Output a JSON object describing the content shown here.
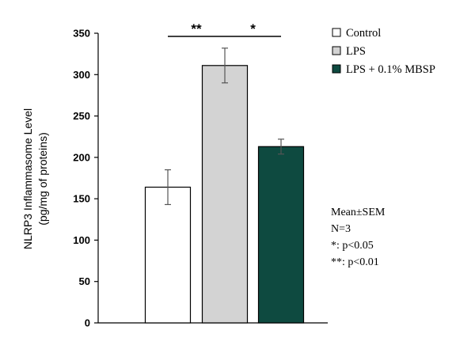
{
  "chart_data": {
    "type": "bar",
    "title": "",
    "xlabel": "",
    "ylabel": [
      "NLRP3 Inflammasome Level",
      "(pg/mg of proteins)"
    ],
    "ylim": [
      0,
      350
    ],
    "yticks": [
      0,
      50,
      100,
      150,
      200,
      250,
      300,
      350
    ],
    "categories": [
      "Control",
      "LPS",
      "LPS + 0.1% MBSP"
    ],
    "values": [
      164,
      311,
      213
    ],
    "errors": [
      21,
      21,
      9
    ],
    "colors": [
      "#ffffff",
      "#d3d3d3",
      "#0e4a40"
    ],
    "legend": [
      "Control",
      "LPS",
      "LPS + 0.1% MBSP"
    ],
    "legend_position": "top-right",
    "significance": [
      {
        "from": 0,
        "to": 1,
        "label": "**"
      },
      {
        "from": 1,
        "to": 2,
        "label": "*"
      }
    ],
    "notes": [
      "Mean±SEM",
      "N=3",
      "*: p<0.05",
      "**: p<0.01"
    ]
  }
}
